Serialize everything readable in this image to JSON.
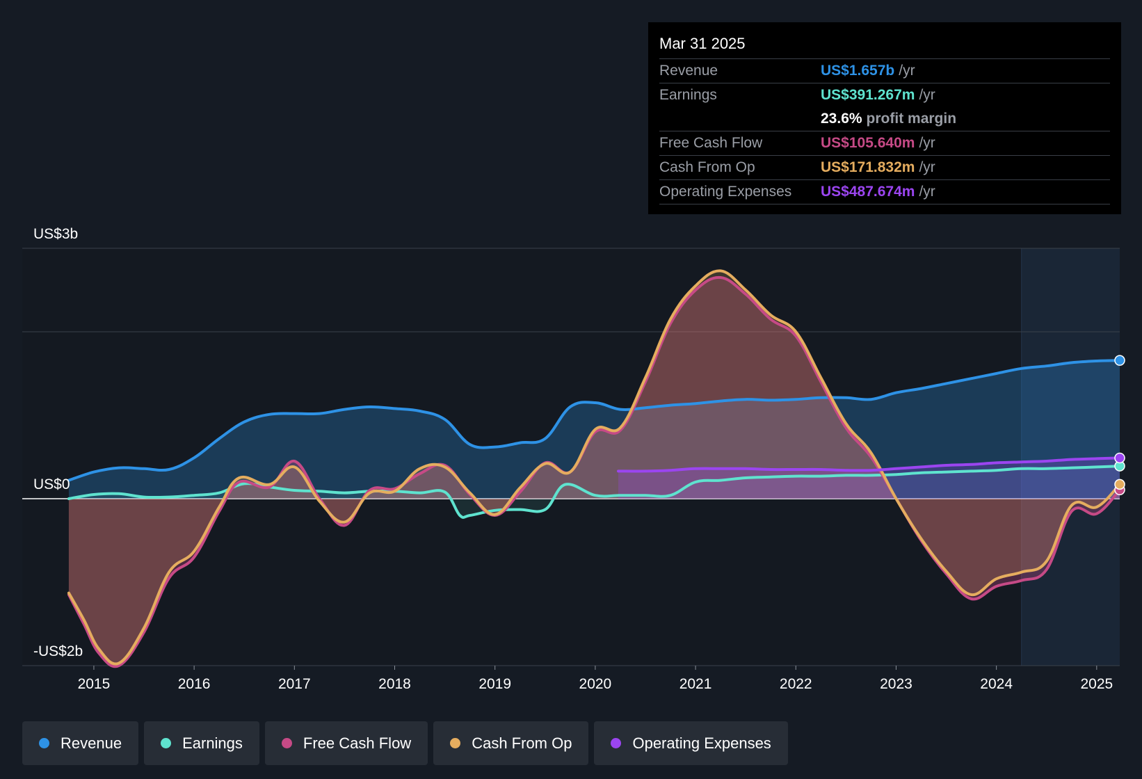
{
  "chart_data": {
    "type": "area",
    "title": "",
    "y_unit": "US$ billions",
    "ylim": [
      -2,
      3
    ],
    "y_axis_labels": [
      {
        "value": 3,
        "label": "US$3b"
      },
      {
        "value": 0,
        "label": "US$0"
      },
      {
        "value": -2,
        "label": "-US$2b"
      }
    ],
    "gridlines": [
      3,
      2,
      0,
      -2
    ],
    "xlim": [
      2014.73,
      2025.23
    ],
    "x_ticks": [
      {
        "value": 2015,
        "label": "2015"
      },
      {
        "value": 2016,
        "label": "2016"
      },
      {
        "value": 2017,
        "label": "2017"
      },
      {
        "value": 2018,
        "label": "2018"
      },
      {
        "value": 2019,
        "label": "2019"
      },
      {
        "value": 2020,
        "label": "2020"
      },
      {
        "value": 2021,
        "label": "2021"
      },
      {
        "value": 2022,
        "label": "2022"
      },
      {
        "value": 2023,
        "label": "2023"
      },
      {
        "value": 2024,
        "label": "2024"
      },
      {
        "value": 2025,
        "label": "2025"
      }
    ],
    "forecast_start": 2024.25,
    "series": [
      {
        "name": "Revenue",
        "color": "#2e92e6",
        "x": [
          2014.75,
          2015.0,
          2015.25,
          2015.5,
          2015.75,
          2016.0,
          2016.25,
          2016.5,
          2016.75,
          2017.0,
          2017.25,
          2017.5,
          2017.75,
          2018.0,
          2018.25,
          2018.5,
          2018.75,
          2019.0,
          2019.25,
          2019.5,
          2019.75,
          2020.0,
          2020.25,
          2020.5,
          2020.75,
          2021.0,
          2021.25,
          2021.5,
          2021.75,
          2022.0,
          2022.25,
          2022.5,
          2022.75,
          2023.0,
          2023.25,
          2023.5,
          2023.75,
          2024.0,
          2024.25,
          2024.5,
          2024.75,
          2025.0,
          2025.23
        ],
        "values": [
          0.22,
          0.32,
          0.37,
          0.36,
          0.35,
          0.49,
          0.72,
          0.92,
          1.01,
          1.02,
          1.02,
          1.07,
          1.1,
          1.08,
          1.05,
          0.95,
          0.65,
          0.62,
          0.67,
          0.72,
          1.1,
          1.15,
          1.07,
          1.09,
          1.12,
          1.14,
          1.17,
          1.19,
          1.18,
          1.19,
          1.21,
          1.21,
          1.19,
          1.27,
          1.32,
          1.38,
          1.44,
          1.5,
          1.56,
          1.59,
          1.63,
          1.65,
          1.657
        ]
      },
      {
        "name": "Earnings",
        "color": "#5fe3cf",
        "x": [
          2014.75,
          2015.0,
          2015.25,
          2015.5,
          2015.75,
          2016.0,
          2016.25,
          2016.5,
          2016.75,
          2017.0,
          2017.25,
          2017.5,
          2017.75,
          2018.0,
          2018.25,
          2018.5,
          2018.65,
          2018.75,
          2019.0,
          2019.25,
          2019.5,
          2019.7,
          2020.0,
          2020.25,
          2020.5,
          2020.75,
          2021.0,
          2021.25,
          2021.5,
          2021.75,
          2022.0,
          2022.25,
          2022.5,
          2022.75,
          2023.0,
          2023.25,
          2023.5,
          2023.75,
          2024.0,
          2024.25,
          2024.5,
          2024.75,
          2025.0,
          2025.23
        ],
        "values": [
          0.0,
          0.05,
          0.06,
          0.02,
          0.02,
          0.04,
          0.07,
          0.18,
          0.14,
          0.1,
          0.09,
          0.07,
          0.09,
          0.09,
          0.07,
          0.08,
          -0.2,
          -0.2,
          -0.14,
          -0.13,
          -0.13,
          0.17,
          0.04,
          0.04,
          0.04,
          0.04,
          0.2,
          0.22,
          0.25,
          0.26,
          0.27,
          0.27,
          0.28,
          0.28,
          0.29,
          0.31,
          0.32,
          0.33,
          0.34,
          0.36,
          0.36,
          0.37,
          0.38,
          0.391
        ]
      },
      {
        "name": "Free Cash Flow",
        "color": "#c64a86",
        "x": [
          2014.75,
          2014.9,
          2015.05,
          2015.25,
          2015.5,
          2015.75,
          2016.0,
          2016.25,
          2016.45,
          2016.75,
          2017.0,
          2017.25,
          2017.5,
          2017.75,
          2018.0,
          2018.25,
          2018.5,
          2018.75,
          2019.0,
          2019.25,
          2019.5,
          2019.75,
          2020.0,
          2020.25,
          2020.5,
          2020.75,
          2021.0,
          2021.25,
          2021.5,
          2021.75,
          2022.0,
          2022.25,
          2022.5,
          2022.75,
          2023.0,
          2023.25,
          2023.5,
          2023.75,
          2024.0,
          2024.25,
          2024.5,
          2024.75,
          2025.0,
          2025.23
        ],
        "values": [
          -1.15,
          -1.5,
          -1.85,
          -2.0,
          -1.6,
          -0.95,
          -0.7,
          -0.15,
          0.2,
          0.14,
          0.45,
          0.0,
          -0.32,
          0.1,
          0.12,
          0.3,
          0.4,
          0.05,
          -0.2,
          0.08,
          0.43,
          0.32,
          0.8,
          0.82,
          1.4,
          2.1,
          2.5,
          2.65,
          2.45,
          2.15,
          1.95,
          1.4,
          0.85,
          0.5,
          0.0,
          -0.5,
          -0.9,
          -1.2,
          -1.05,
          -0.98,
          -0.85,
          -0.15,
          -0.18,
          0.106
        ]
      },
      {
        "name": "Cash From Op",
        "color": "#e5ad5f",
        "x": [
          2014.75,
          2014.9,
          2015.05,
          2015.25,
          2015.5,
          2015.75,
          2016.0,
          2016.25,
          2016.45,
          2016.75,
          2017.0,
          2017.25,
          2017.5,
          2017.75,
          2018.0,
          2018.25,
          2018.5,
          2018.75,
          2019.0,
          2019.25,
          2019.5,
          2019.75,
          2020.0,
          2020.25,
          2020.5,
          2020.75,
          2021.0,
          2021.25,
          2021.5,
          2021.75,
          2022.0,
          2022.25,
          2022.5,
          2022.75,
          2023.0,
          2023.25,
          2023.5,
          2023.75,
          2024.0,
          2024.25,
          2024.5,
          2024.75,
          2025.0,
          2025.23
        ],
        "values": [
          -1.13,
          -1.45,
          -1.8,
          -1.97,
          -1.55,
          -0.88,
          -0.63,
          -0.1,
          0.25,
          0.17,
          0.38,
          -0.03,
          -0.28,
          0.07,
          0.09,
          0.36,
          0.38,
          0.07,
          -0.19,
          0.13,
          0.42,
          0.32,
          0.83,
          0.85,
          1.45,
          2.15,
          2.55,
          2.73,
          2.5,
          2.2,
          2.0,
          1.45,
          0.9,
          0.55,
          0.0,
          -0.48,
          -0.87,
          -1.15,
          -0.96,
          -0.88,
          -0.75,
          -0.08,
          -0.1,
          0.172
        ]
      },
      {
        "name": "Operating Expenses",
        "color": "#9b45f0",
        "x": [
          2020.23,
          2020.5,
          2020.75,
          2021.0,
          2021.25,
          2021.5,
          2021.75,
          2022.0,
          2022.25,
          2022.5,
          2022.75,
          2023.0,
          2023.25,
          2023.5,
          2023.75,
          2024.0,
          2024.25,
          2024.5,
          2024.75,
          2025.0,
          2025.23
        ],
        "values": [
          0.33,
          0.33,
          0.34,
          0.36,
          0.36,
          0.36,
          0.35,
          0.35,
          0.35,
          0.34,
          0.34,
          0.36,
          0.38,
          0.4,
          0.41,
          0.43,
          0.44,
          0.45,
          0.47,
          0.48,
          0.488
        ]
      }
    ]
  },
  "tooltip": {
    "date": "Mar 31 2025",
    "rows": [
      {
        "label": "Revenue",
        "value": "US$1.657b",
        "unit": "/yr",
        "color": "#2e92e6"
      },
      {
        "label": "Earnings",
        "value": "US$391.267m",
        "unit": "/yr",
        "color": "#5fe3cf"
      },
      {
        "label": "",
        "margin_value": "23.6%",
        "margin_text": "profit margin"
      },
      {
        "label": "Free Cash Flow",
        "value": "US$105.640m",
        "unit": "/yr",
        "color": "#c64a86"
      },
      {
        "label": "Cash From Op",
        "value": "US$171.832m",
        "unit": "/yr",
        "color": "#e5ad5f"
      },
      {
        "label": "Operating Expenses",
        "value": "US$487.674m",
        "unit": "/yr",
        "color": "#9b45f0"
      }
    ]
  },
  "legend": [
    {
      "label": "Revenue",
      "color": "#2e92e6"
    },
    {
      "label": "Earnings",
      "color": "#5fe3cf"
    },
    {
      "label": "Free Cash Flow",
      "color": "#c64a86"
    },
    {
      "label": "Cash From Op",
      "color": "#e5ad5f"
    },
    {
      "label": "Operating Expenses",
      "color": "#9b45f0"
    }
  ]
}
